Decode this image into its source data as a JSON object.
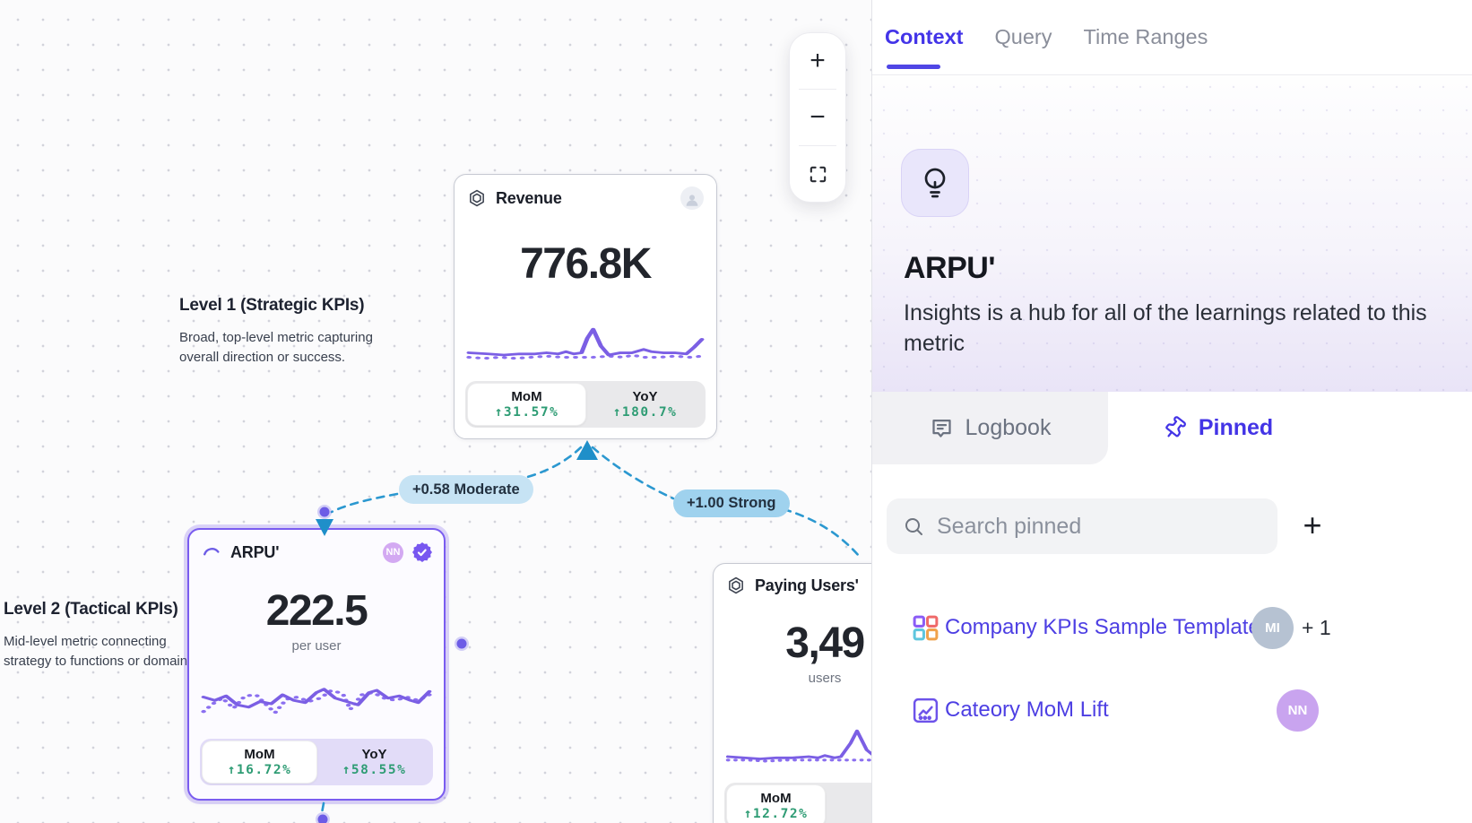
{
  "canvas": {
    "zoom_toolbar": {
      "zoom_in": "+",
      "zoom_out": "−"
    },
    "levels": [
      {
        "title": "Level 1 (Strategic KPIs)",
        "lines": [
          "Broad, top-level metric capturing",
          "overall direction or success."
        ]
      },
      {
        "title": "Level 2 (Tactical KPIs)",
        "lines": [
          "Mid-level metric connecting",
          "strategy to functions or domains."
        ]
      }
    ],
    "cards": {
      "revenue": {
        "title": "Revenue",
        "value": "776.8K",
        "stats": [
          {
            "label": "MoM",
            "value": "↑31.57%"
          },
          {
            "label": "YoY",
            "value": "↑180.7%"
          }
        ]
      },
      "arpu": {
        "title": "ARPU'",
        "avatar": "NN",
        "value": "222.5",
        "unit": "per user",
        "stats": [
          {
            "label": "MoM",
            "value": "↑16.72%"
          },
          {
            "label": "YoY",
            "value": "↑58.55%"
          }
        ]
      },
      "paying_users": {
        "title": "Paying Users'",
        "value": "3,49",
        "unit": "users",
        "stats": [
          {
            "label": "MoM",
            "value": "↑12.72%"
          }
        ]
      }
    },
    "edges": {
      "moderate": "+0.58 Moderate",
      "strong": "+1.00 Strong"
    }
  },
  "panel": {
    "tabs": [
      "Context",
      "Query",
      "Time Ranges"
    ],
    "active_tab": "Context",
    "hero": {
      "title": "ARPU'",
      "description": "Insights is a hub for all of the learnings related to this metric"
    },
    "subtabs": [
      {
        "label": "Logbook"
      },
      {
        "label": "Pinned"
      }
    ],
    "search": {
      "placeholder": "Search pinned",
      "add_button": "+"
    },
    "pinned_items": [
      {
        "label": "Company KPIs Sample Template",
        "avatar": "MI",
        "extra": "+ 1"
      },
      {
        "label": "Cateory MoM Lift",
        "avatar": "NN"
      }
    ]
  },
  "colors": {
    "accent_purple": "#7a5cf0",
    "indigo_text": "#4334e8",
    "stat_green": "#2e9c74",
    "edge_blue": "#2b98d0",
    "badge_moderate_bg": "#c6e3f4",
    "badge_strong_bg": "#9fd2ee"
  },
  "sparklines": {
    "revenue": {
      "solid": [
        [
          0,
          26
        ],
        [
          10,
          27
        ],
        [
          18,
          28
        ],
        [
          26,
          27
        ],
        [
          34,
          27
        ],
        [
          40,
          26
        ],
        [
          46,
          27
        ],
        [
          50,
          25
        ],
        [
          54,
          27
        ],
        [
          58,
          26
        ],
        [
          61,
          13
        ],
        [
          64,
          5
        ],
        [
          68,
          20
        ],
        [
          72,
          28
        ],
        [
          78,
          26
        ],
        [
          84,
          26
        ],
        [
          90,
          23
        ],
        [
          94,
          25
        ],
        [
          100,
          26
        ],
        [
          106,
          26
        ],
        [
          112,
          27
        ],
        [
          116,
          21
        ],
        [
          120,
          14
        ]
      ],
      "dotted": [
        [
          0,
          30
        ],
        [
          8,
          31
        ],
        [
          16,
          30
        ],
        [
          24,
          31
        ],
        [
          32,
          30
        ],
        [
          40,
          29
        ],
        [
          48,
          30
        ],
        [
          56,
          30
        ],
        [
          64,
          30
        ],
        [
          72,
          29
        ],
        [
          80,
          30
        ],
        [
          84,
          28
        ],
        [
          90,
          30
        ],
        [
          98,
          30
        ],
        [
          106,
          29
        ],
        [
          114,
          30
        ],
        [
          120,
          29
        ]
      ]
    },
    "arpu": {
      "solid": [
        [
          0,
          14
        ],
        [
          6,
          17
        ],
        [
          12,
          13
        ],
        [
          18,
          21
        ],
        [
          24,
          23
        ],
        [
          30,
          18
        ],
        [
          36,
          20
        ],
        [
          42,
          12
        ],
        [
          48,
          17
        ],
        [
          54,
          19
        ],
        [
          60,
          10
        ],
        [
          64,
          7
        ],
        [
          70,
          15
        ],
        [
          76,
          18
        ],
        [
          82,
          21
        ],
        [
          88,
          10
        ],
        [
          92,
          8
        ],
        [
          98,
          15
        ],
        [
          104,
          13
        ],
        [
          110,
          17
        ],
        [
          114,
          19
        ],
        [
          120,
          9
        ]
      ],
      "dotted": [
        [
          0,
          27
        ],
        [
          5,
          20
        ],
        [
          10,
          15
        ],
        [
          16,
          24
        ],
        [
          22,
          13
        ],
        [
          28,
          12
        ],
        [
          34,
          22
        ],
        [
          38,
          28
        ],
        [
          44,
          16
        ],
        [
          50,
          14
        ],
        [
          56,
          18
        ],
        [
          62,
          15
        ],
        [
          68,
          8
        ],
        [
          74,
          11
        ],
        [
          78,
          25
        ],
        [
          84,
          12
        ],
        [
          90,
          10
        ],
        [
          96,
          15
        ],
        [
          102,
          17
        ],
        [
          108,
          14
        ],
        [
          114,
          17
        ],
        [
          120,
          12
        ]
      ]
    },
    "paying_users": {
      "solid": [
        [
          0,
          28
        ],
        [
          10,
          29
        ],
        [
          20,
          30
        ],
        [
          30,
          29
        ],
        [
          40,
          29
        ],
        [
          50,
          28
        ],
        [
          56,
          29
        ],
        [
          60,
          27
        ],
        [
          66,
          29
        ],
        [
          70,
          28
        ],
        [
          76,
          16
        ],
        [
          80,
          5
        ],
        [
          86,
          22
        ],
        [
          92,
          29
        ],
        [
          100,
          28
        ],
        [
          110,
          29
        ],
        [
          120,
          28
        ]
      ],
      "dotted": [
        [
          0,
          31
        ],
        [
          12,
          31
        ],
        [
          24,
          32
        ],
        [
          36,
          31
        ],
        [
          48,
          31
        ],
        [
          60,
          31
        ],
        [
          72,
          31
        ],
        [
          80,
          31
        ],
        [
          88,
          31
        ],
        [
          100,
          31
        ],
        [
          110,
          31
        ],
        [
          120,
          31
        ]
      ]
    }
  }
}
